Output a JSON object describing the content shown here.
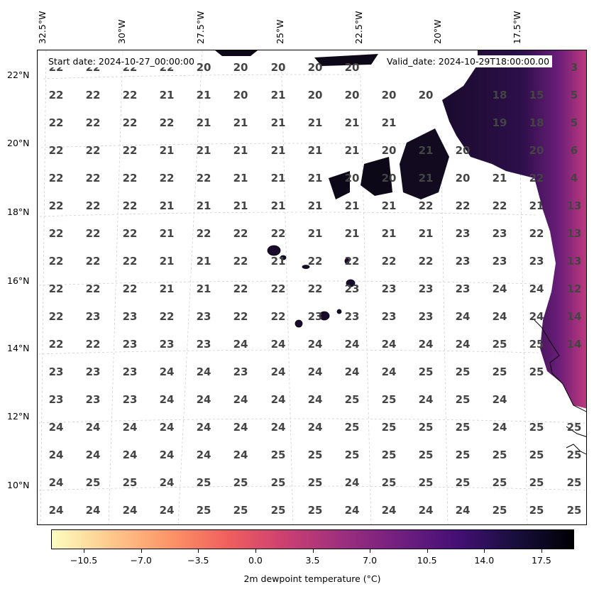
{
  "header": {
    "start_date": "Start date: 2024-10-27_00:00:00",
    "valid_date": "Valid_date: 2024-10-29T18:00:00.00"
  },
  "lon_labels": [
    "32.5°W",
    "30°W",
    "27.5°W",
    "25°W",
    "22.5°W",
    "20°W",
    "17.5°W"
  ],
  "lat_labels": [
    "22°N",
    "20°N",
    "18°N",
    "16°N",
    "14°N",
    "12°N",
    "10°N"
  ],
  "colorbar": {
    "title": "2m dewpoint temperature ($^\\circ$C)",
    "title_display": "2m dewpoint temperature (°C)",
    "ticks": [
      "-10.5",
      "-7.0",
      "-3.5",
      "0.0",
      "3.5",
      "7.0",
      "10.5",
      "14.0",
      "17.5"
    ],
    "min": -12.5,
    "max": 19.5,
    "colormap": "magma_r"
  },
  "grid_values": [
    [
      "22",
      "22",
      "22",
      "22",
      "20",
      "20",
      "20",
      "20",
      "20",
      "",
      "",
      "",
      "",
      "",
      "3"
    ],
    [
      "22",
      "22",
      "22",
      "21",
      "21",
      "20",
      "21",
      "20",
      "20",
      "20",
      "20",
      "",
      "18",
      "15",
      "5"
    ],
    [
      "22",
      "22",
      "22",
      "22",
      "21",
      "21",
      "21",
      "21",
      "21",
      "21",
      "",
      "",
      "19",
      "18",
      "5"
    ],
    [
      "22",
      "22",
      "22",
      "21",
      "21",
      "21",
      "21",
      "21",
      "21",
      "20",
      "21",
      "20",
      "",
      "20",
      "6"
    ],
    [
      "22",
      "22",
      "22",
      "22",
      "22",
      "21",
      "21",
      "21",
      "20",
      "20",
      "21",
      "20",
      "21",
      "22",
      "4"
    ],
    [
      "22",
      "22",
      "22",
      "21",
      "21",
      "21",
      "21",
      "21",
      "21",
      "21",
      "22",
      "22",
      "22",
      "21",
      "13"
    ],
    [
      "22",
      "22",
      "22",
      "21",
      "22",
      "22",
      "22",
      "21",
      "21",
      "21",
      "21",
      "23",
      "23",
      "22",
      "13"
    ],
    [
      "22",
      "22",
      "22",
      "21",
      "21",
      "22",
      "21",
      "22",
      "22",
      "22",
      "22",
      "23",
      "23",
      "23",
      "13"
    ],
    [
      "22",
      "22",
      "22",
      "21",
      "21",
      "22",
      "22",
      "22",
      "23",
      "23",
      "23",
      "23",
      "24",
      "24",
      "12"
    ],
    [
      "22",
      "23",
      "23",
      "22",
      "23",
      "22",
      "22",
      "23",
      "23",
      "23",
      "23",
      "24",
      "24",
      "24",
      "14"
    ],
    [
      "22",
      "22",
      "23",
      "23",
      "23",
      "24",
      "24",
      "24",
      "24",
      "24",
      "24",
      "24",
      "25",
      "25",
      "14"
    ],
    [
      "23",
      "23",
      "23",
      "24",
      "24",
      "23",
      "24",
      "24",
      "24",
      "24",
      "25",
      "25",
      "25",
      "25",
      ""
    ],
    [
      "23",
      "23",
      "23",
      "24",
      "24",
      "24",
      "24",
      "24",
      "25",
      "25",
      "24",
      "25",
      "24",
      "",
      ""
    ],
    [
      "24",
      "24",
      "24",
      "24",
      "24",
      "24",
      "24",
      "24",
      "25",
      "25",
      "25",
      "25",
      "24",
      "25",
      "25"
    ],
    [
      "24",
      "24",
      "24",
      "24",
      "24",
      "24",
      "25",
      "25",
      "25",
      "25",
      "25",
      "25",
      "25",
      "25",
      "25"
    ],
    [
      "24",
      "25",
      "25",
      "24",
      "25",
      "25",
      "25",
      "25",
      "24",
      "25",
      "25",
      "25",
      "25",
      "25",
      "25"
    ],
    [
      "24",
      "24",
      "24",
      "24",
      "25",
      "25",
      "25",
      "25",
      "24",
      "24",
      "24",
      "24",
      "25",
      "25",
      "25"
    ]
  ]
}
